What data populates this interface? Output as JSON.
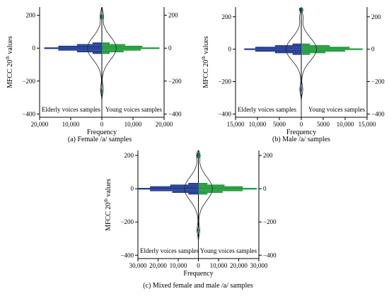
{
  "chart_data": [
    {
      "type": "bar",
      "variant": "back-to-back horizontal histogram with density outline",
      "caption": "(a) Female /a/ samples",
      "xlabel": "Frequency",
      "ylabel_main": "MFCC 20",
      "ylabel_sup": "th",
      "ylabel_tail": " values",
      "left_label": "Elderly voices samples",
      "right_label": "Young voices samples",
      "xlim": [
        -20000,
        20000
      ],
      "ylim": [
        -420,
        250
      ],
      "xticks": [
        -20000,
        -10000,
        0,
        10000,
        20000
      ],
      "xtick_labels": [
        "20,000",
        "10,000",
        "0",
        "10,000",
        "20,000"
      ],
      "yticks": [
        200,
        0,
        -200,
        -400
      ],
      "ytick_labels": [
        "200",
        "0",
        "−200",
        "−400"
      ],
      "bins_center": [
        200,
        190,
        180,
        30,
        20,
        10,
        0,
        -10,
        -20,
        -30,
        -250,
        -260,
        -270
      ],
      "left_series": {
        "name": "Elderly voices samples",
        "color": "#1f3a8f",
        "values": [
          600,
          600,
          400,
          3000,
          8000,
          14000,
          18500,
          14000,
          8000,
          3000,
          300,
          400,
          300
        ]
      },
      "right_series": {
        "name": "Young voices samples",
        "color": "#1f9a3a",
        "values": [
          500,
          600,
          400,
          2500,
          7500,
          13000,
          18500,
          12500,
          7000,
          2500,
          200,
          300,
          200
        ]
      }
    },
    {
      "type": "bar",
      "variant": "back-to-back horizontal histogram with density outline",
      "caption": "(b) Male /a/ samples",
      "xlabel": "Frequency",
      "ylabel_main": "MFCC 20",
      "ylabel_sup": "th",
      "ylabel_tail": " values",
      "left_label": "Elderly voices samples",
      "right_label": "Young voices samples",
      "xlim": [
        -15000,
        15000
      ],
      "ylim": [
        -420,
        260
      ],
      "xticks": [
        -15000,
        -10000,
        -5000,
        0,
        5000,
        10000,
        15000
      ],
      "xtick_labels": [
        "15,000",
        "10,000",
        "5000",
        "0",
        "5000",
        "10,000",
        "15,000"
      ],
      "yticks": [
        200,
        0,
        -200,
        -400
      ],
      "ytick_labels": [
        "200",
        "0",
        "−200",
        "−400"
      ],
      "bins_center": [
        250,
        240,
        230,
        30,
        20,
        10,
        0,
        -10,
        -20,
        -30,
        -240,
        -250,
        -260
      ],
      "left_series": {
        "name": "Elderly voices samples",
        "color": "#1f3a8f",
        "values": [
          500,
          500,
          300,
          2000,
          6000,
          10500,
          13000,
          10500,
          6000,
          2000,
          200,
          300,
          200
        ]
      },
      "right_series": {
        "name": "Young voices samples",
        "color": "#1f9a3a",
        "values": [
          400,
          500,
          300,
          2000,
          6500,
          11000,
          14000,
          10000,
          5500,
          2000,
          200,
          200,
          150
        ]
      }
    },
    {
      "type": "bar",
      "variant": "back-to-back horizontal histogram with density outline",
      "caption": "(c) Mixed female and male /a/ samples",
      "xlabel": "Frequency",
      "ylabel_main": "MFCC 20",
      "ylabel_sup": "th",
      "ylabel_tail": " values",
      "left_label": "Elderly voices samples",
      "right_label": "Young voices samples",
      "xlim": [
        -30000,
        30000
      ],
      "ylim": [
        -420,
        230
      ],
      "xticks": [
        -30000,
        -20000,
        -10000,
        0,
        10000,
        20000,
        30000
      ],
      "xtick_labels": [
        "30,000",
        "20,000",
        "10,000",
        "0",
        "10,000",
        "20,000",
        "30,000"
      ],
      "yticks": [
        200,
        0,
        -200,
        -400
      ],
      "ytick_labels": [
        "200",
        "0",
        "−200",
        "−400"
      ],
      "bins_center": [
        210,
        200,
        190,
        30,
        20,
        10,
        0,
        -10,
        -20,
        -30,
        -240,
        -250,
        -260
      ],
      "left_series": {
        "name": "Elderly voices samples",
        "color": "#1f3a8f",
        "values": [
          900,
          1100,
          700,
          5000,
          14000,
          24000,
          30000,
          24000,
          13000,
          5000,
          400,
          600,
          400
        ]
      },
      "right_series": {
        "name": "Young voices samples",
        "color": "#1f9a3a",
        "values": [
          800,
          1100,
          700,
          4500,
          13000,
          22000,
          29000,
          22000,
          12000,
          4500,
          300,
          500,
          300
        ]
      }
    }
  ]
}
